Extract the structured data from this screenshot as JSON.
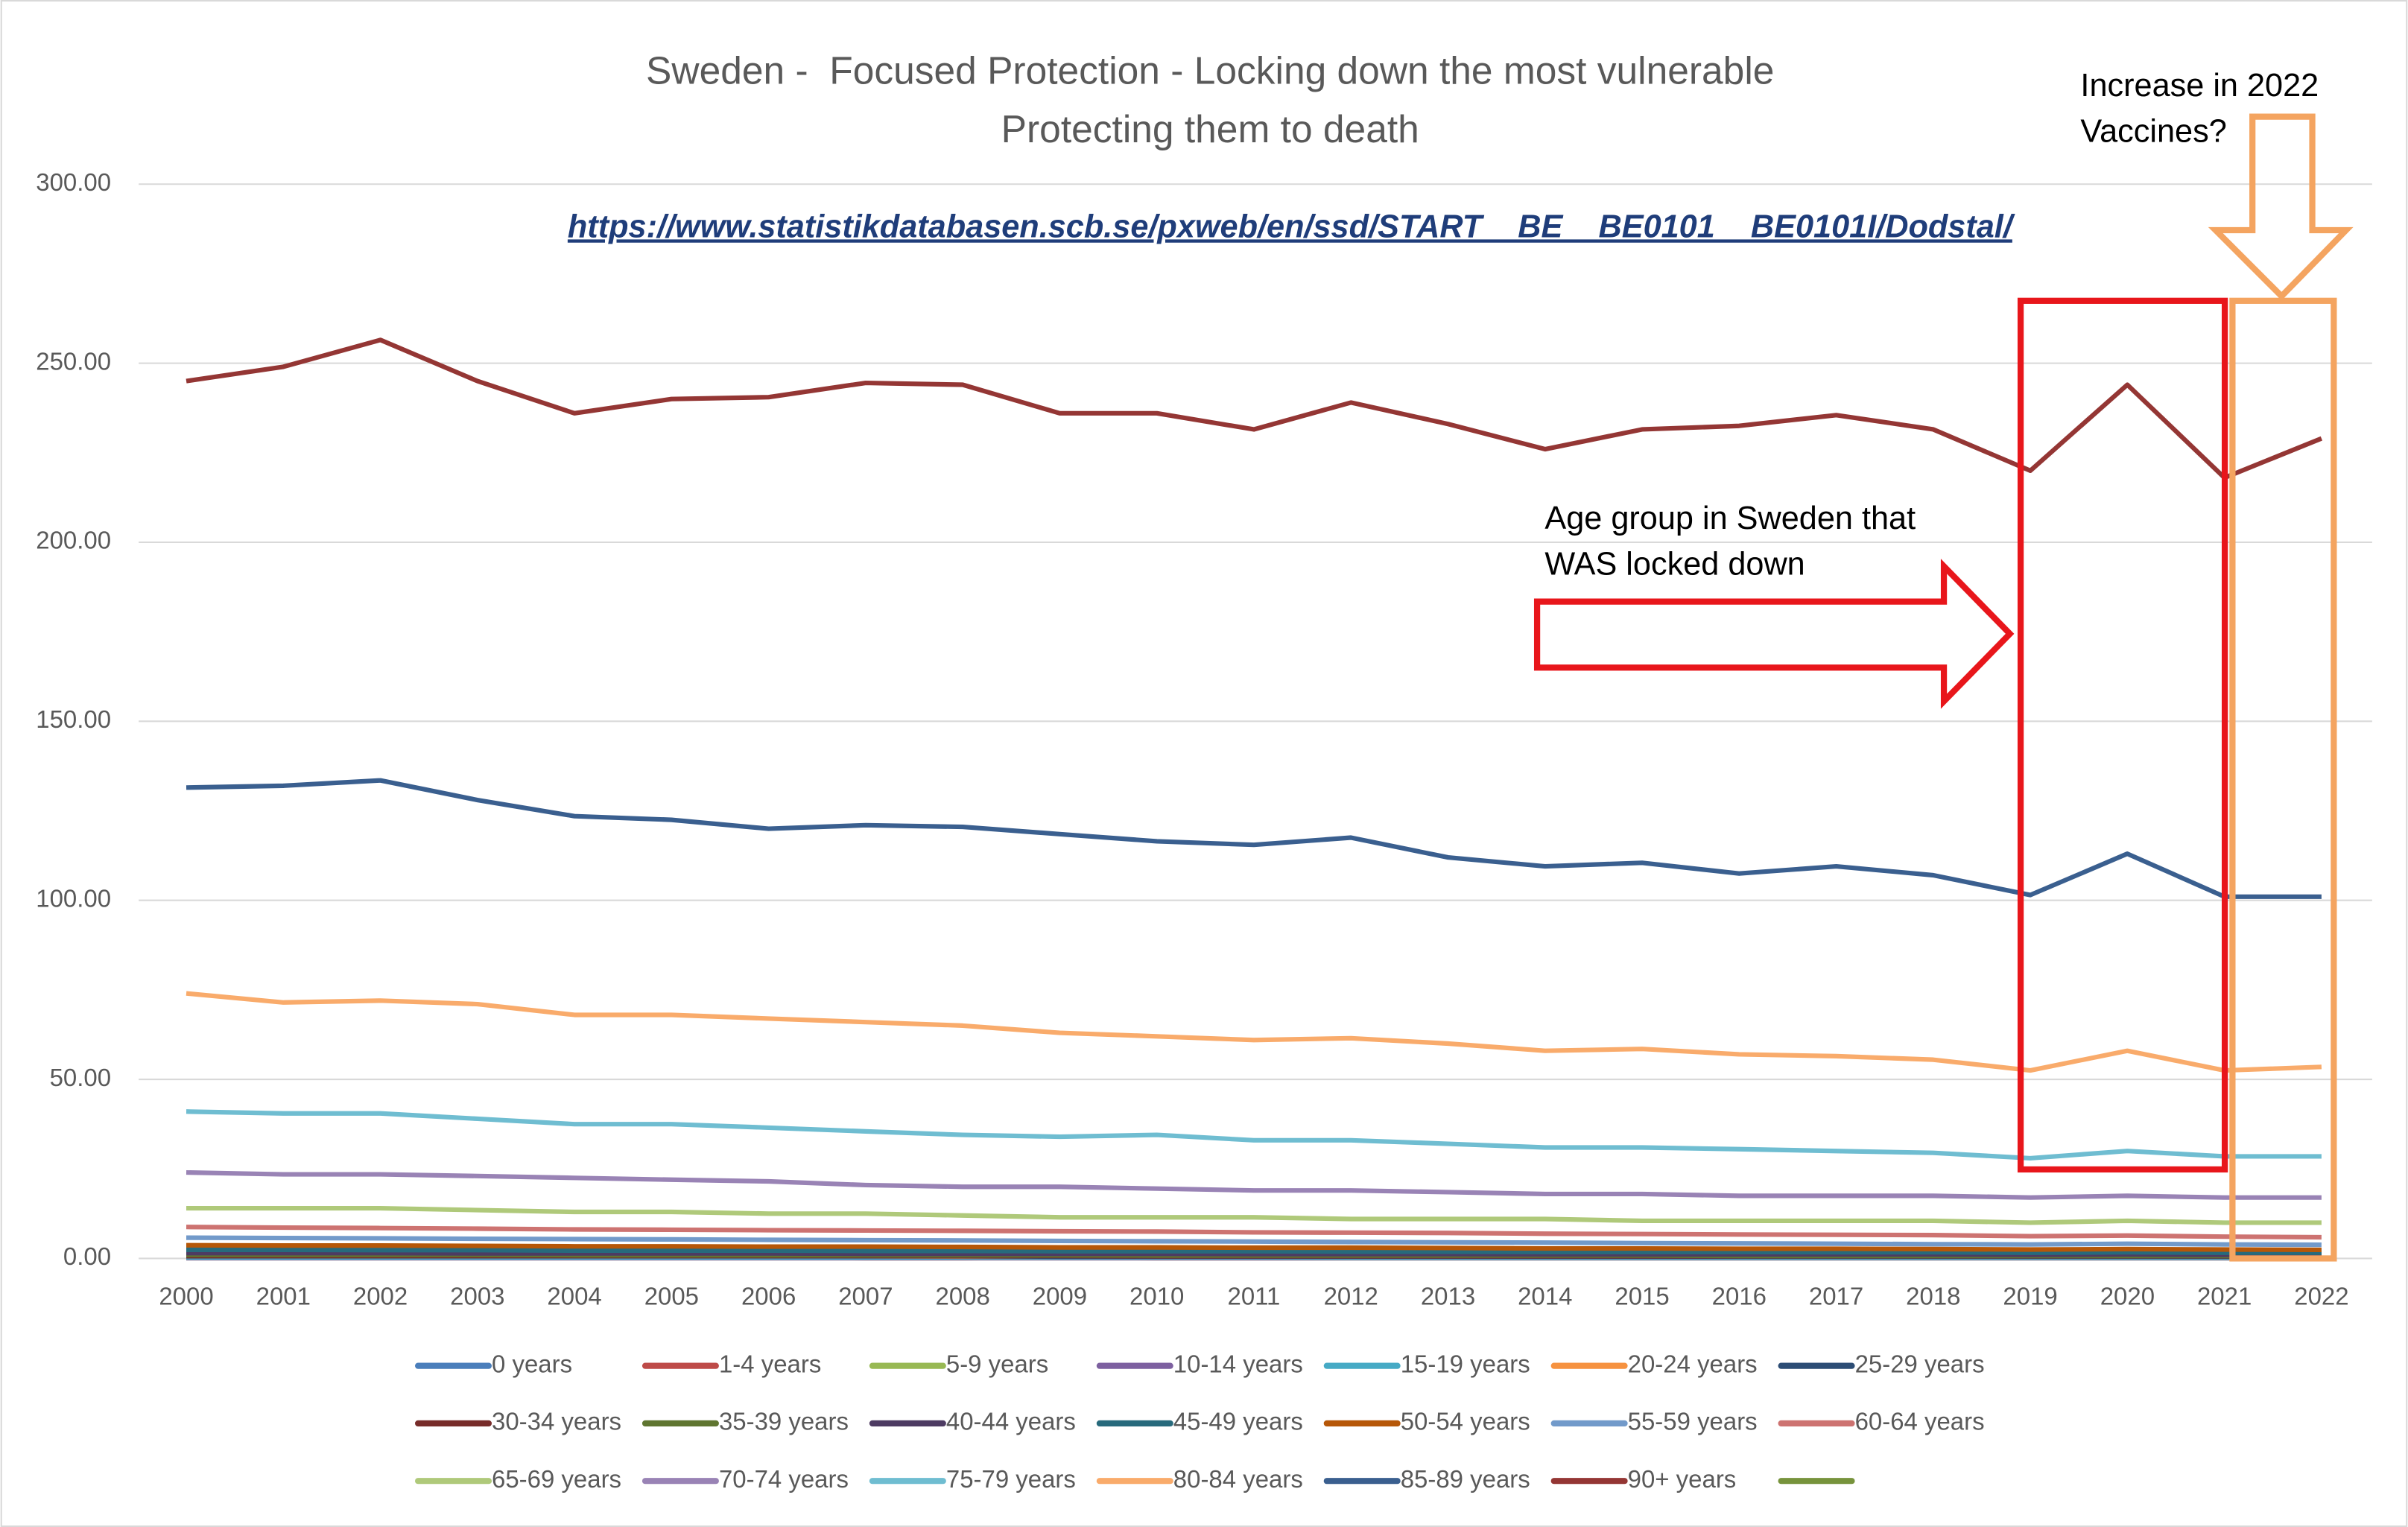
{
  "chart_data": {
    "type": "line",
    "title": "Sweden -  Focused Protection - Locking down the most vulnerable",
    "subtitle": "Protecting them to death",
    "source": "https://www.statistikdatabasen.scb.se/pxweb/en/ssd/START__BE__BE0101__BE0101I/Dodstal/",
    "annotations": [
      "Increase in 2022",
      "Vaccines?",
      "Age group in Sweden that",
      "WAS locked down"
    ],
    "categories": [
      "2000",
      "2001",
      "2002",
      "2003",
      "2004",
      "2005",
      "2006",
      "2007",
      "2008",
      "2009",
      "2010",
      "2011",
      "2012",
      "2013",
      "2014",
      "2015",
      "2016",
      "2017",
      "2018",
      "2019",
      "2020",
      "2021",
      "2022"
    ],
    "ylim": [
      0,
      300
    ],
    "yticks": [
      {
        "value": 0,
        "label": "0.00"
      },
      {
        "value": 50,
        "label": "50.00"
      },
      {
        "value": 100,
        "label": "100.00"
      },
      {
        "value": 150,
        "label": "150.00"
      },
      {
        "value": 200,
        "label": "200.00"
      },
      {
        "value": 250,
        "label": "250.00"
      },
      {
        "value": 300,
        "label": "300.00"
      }
    ],
    "grid": true,
    "legend": "bottom",
    "series": [
      {
        "name": "0 years",
        "color": "#4a7ebb",
        "values": [
          3.4,
          3.6,
          3.3,
          3.1,
          3.1,
          2.4,
          2.8,
          2.5,
          2.5,
          2.5,
          2.5,
          2.1,
          2.6,
          2.7,
          2.2,
          2.5,
          2.5,
          2.4,
          2.0,
          2.1,
          2.4,
          2.1,
          2.2
        ]
      },
      {
        "name": "1-4 years",
        "color": "#be4b48",
        "values": [
          0.2,
          0.2,
          0.2,
          0.2,
          0.2,
          0.2,
          0.2,
          0.1,
          0.1,
          0.2,
          0.1,
          0.1,
          0.1,
          0.1,
          0.1,
          0.1,
          0.1,
          0.1,
          0.1,
          0.1,
          0.1,
          0.1,
          0.1
        ]
      },
      {
        "name": "5-9 years",
        "color": "#98b954",
        "values": [
          0.1,
          0.1,
          0.1,
          0.1,
          0.1,
          0.1,
          0.1,
          0.1,
          0.1,
          0.1,
          0.1,
          0.1,
          0.1,
          0.1,
          0.1,
          0.1,
          0.1,
          0.1,
          0.1,
          0.1,
          0.1,
          0.1,
          0.1
        ]
      },
      {
        "name": "10-14 years",
        "color": "#7d60a0",
        "values": [
          0.1,
          0.1,
          0.1,
          0.1,
          0.1,
          0.1,
          0.1,
          0.1,
          0.1,
          0.1,
          0.1,
          0.1,
          0.1,
          0.1,
          0.1,
          0.1,
          0.1,
          0.1,
          0.1,
          0.1,
          0.1,
          0.1,
          0.1
        ]
      },
      {
        "name": "15-19 years",
        "color": "#46aac5",
        "values": [
          0.3,
          0.3,
          0.3,
          0.3,
          0.3,
          0.3,
          0.3,
          0.3,
          0.3,
          0.3,
          0.3,
          0.3,
          0.2,
          0.2,
          0.2,
          0.2,
          0.2,
          0.2,
          0.2,
          0.2,
          0.2,
          0.2,
          0.2
        ]
      },
      {
        "name": "20-24 years",
        "color": "#f69240",
        "values": [
          0.6,
          0.6,
          0.6,
          0.6,
          0.6,
          0.6,
          0.6,
          0.6,
          0.5,
          0.5,
          0.5,
          0.5,
          0.5,
          0.5,
          0.5,
          0.5,
          0.5,
          0.5,
          0.5,
          0.5,
          0.5,
          0.5,
          0.5
        ]
      },
      {
        "name": "25-29 years",
        "color": "#2c4d75",
        "values": [
          0.6,
          0.6,
          0.6,
          0.6,
          0.6,
          0.6,
          0.6,
          0.6,
          0.6,
          0.5,
          0.5,
          0.5,
          0.5,
          0.5,
          0.5,
          0.5,
          0.5,
          0.5,
          0.5,
          0.5,
          0.5,
          0.5,
          0.5
        ]
      },
      {
        "name": "30-34 years",
        "color": "#772c2a",
        "values": [
          0.7,
          0.7,
          0.7,
          0.7,
          0.7,
          0.7,
          0.7,
          0.7,
          0.7,
          0.7,
          0.6,
          0.6,
          0.6,
          0.6,
          0.6,
          0.6,
          0.6,
          0.6,
          0.6,
          0.6,
          0.6,
          0.6,
          0.6
        ]
      },
      {
        "name": "35-39 years",
        "color": "#5f7530",
        "values": [
          1.0,
          1.0,
          1.0,
          1.0,
          0.9,
          0.9,
          0.9,
          0.9,
          0.9,
          0.9,
          0.8,
          0.8,
          0.8,
          0.8,
          0.8,
          0.8,
          0.7,
          0.7,
          0.7,
          0.7,
          0.7,
          0.7,
          0.7
        ]
      },
      {
        "name": "40-44 years",
        "color": "#4d3b62",
        "values": [
          1.5,
          1.5,
          1.5,
          1.4,
          1.4,
          1.4,
          1.4,
          1.3,
          1.3,
          1.3,
          1.3,
          1.2,
          1.2,
          1.2,
          1.1,
          1.1,
          1.1,
          1.1,
          1.1,
          1.0,
          1.1,
          1.0,
          1.0
        ]
      },
      {
        "name": "45-49 years",
        "color": "#276a7c",
        "values": [
          2.4,
          2.4,
          2.3,
          2.3,
          2.2,
          2.2,
          2.2,
          2.1,
          2.1,
          2.0,
          2.0,
          2.0,
          1.9,
          1.9,
          1.8,
          1.8,
          1.8,
          1.7,
          1.7,
          1.6,
          1.7,
          1.6,
          1.6
        ]
      },
      {
        "name": "50-54 years",
        "color": "#b65708",
        "values": [
          3.7,
          3.6,
          3.6,
          3.5,
          3.4,
          3.4,
          3.3,
          3.3,
          3.2,
          3.1,
          3.1,
          3.0,
          3.0,
          2.9,
          2.8,
          2.8,
          2.7,
          2.7,
          2.6,
          2.5,
          2.6,
          2.5,
          2.4
        ]
      },
      {
        "name": "55-59 years",
        "color": "#729aca",
        "values": [
          5.8,
          5.7,
          5.6,
          5.5,
          5.4,
          5.3,
          5.2,
          5.1,
          5.0,
          4.9,
          4.8,
          4.7,
          4.6,
          4.5,
          4.4,
          4.3,
          4.2,
          4.1,
          4.0,
          3.9,
          4.1,
          3.9,
          3.8
        ]
      },
      {
        "name": "60-64 years",
        "color": "#cd7371",
        "values": [
          8.8,
          8.6,
          8.5,
          8.3,
          8.1,
          8.0,
          7.9,
          7.8,
          7.7,
          7.6,
          7.5,
          7.3,
          7.2,
          7.1,
          6.9,
          6.8,
          6.7,
          6.6,
          6.5,
          6.2,
          6.4,
          6.1,
          5.9
        ]
      },
      {
        "name": "65-69 years",
        "color": "#afc97a",
        "values": [
          14,
          14,
          14,
          13.5,
          13,
          13,
          12.5,
          12.5,
          12,
          11.5,
          11.5,
          11.5,
          11,
          11,
          11,
          10.5,
          10.5,
          10.5,
          10.5,
          10,
          10.5,
          10,
          10
        ]
      },
      {
        "name": "70-74 years",
        "color": "#9983b5",
        "values": [
          24,
          23.5,
          23.5,
          23,
          22.5,
          22,
          21.5,
          20.5,
          20,
          20,
          19.5,
          19,
          19,
          18.5,
          18,
          18,
          17.5,
          17.5,
          17.5,
          17,
          17.5,
          17,
          17
        ]
      },
      {
        "name": "75-79 years",
        "color": "#6fbdd1",
        "values": [
          41,
          40.5,
          40.5,
          39,
          37.5,
          37.5,
          36.5,
          35.5,
          34.5,
          34,
          34.5,
          33,
          33,
          32,
          31,
          31,
          30.5,
          30,
          29.5,
          28,
          30,
          28.5,
          28.5
        ]
      },
      {
        "name": "80-84 years",
        "color": "#f9ab6b",
        "values": [
          74,
          71.5,
          72,
          71,
          68,
          68,
          67,
          66,
          65,
          63,
          62,
          61,
          61.5,
          60,
          58,
          58.5,
          57,
          56.5,
          55.5,
          52.5,
          58,
          52.5,
          53.5
        ]
      },
      {
        "name": "85-89 years",
        "color": "#3a5f8f",
        "values": [
          131.5,
          132,
          133.5,
          128,
          123.5,
          122.5,
          120,
          121,
          120.5,
          118.5,
          116.5,
          115.5,
          117.5,
          112,
          109.5,
          110.5,
          107.5,
          109.5,
          107,
          101.5,
          113,
          101,
          101
        ]
      },
      {
        "name": "90+ years",
        "color": "#943634",
        "values": [
          245,
          249,
          256.5,
          245,
          236,
          240,
          240.5,
          244.5,
          244,
          236,
          236,
          231.5,
          239,
          233,
          226,
          231.5,
          232.5,
          235.5,
          231.5,
          220,
          244,
          218,
          229
        ]
      },
      {
        "name": null,
        "color": "#77933c",
        "values": [
          null,
          null,
          null,
          null,
          null,
          null,
          null,
          null,
          null,
          null,
          null,
          null,
          null,
          null,
          null,
          null,
          null,
          null,
          null,
          null,
          null,
          null,
          null
        ]
      }
    ]
  }
}
